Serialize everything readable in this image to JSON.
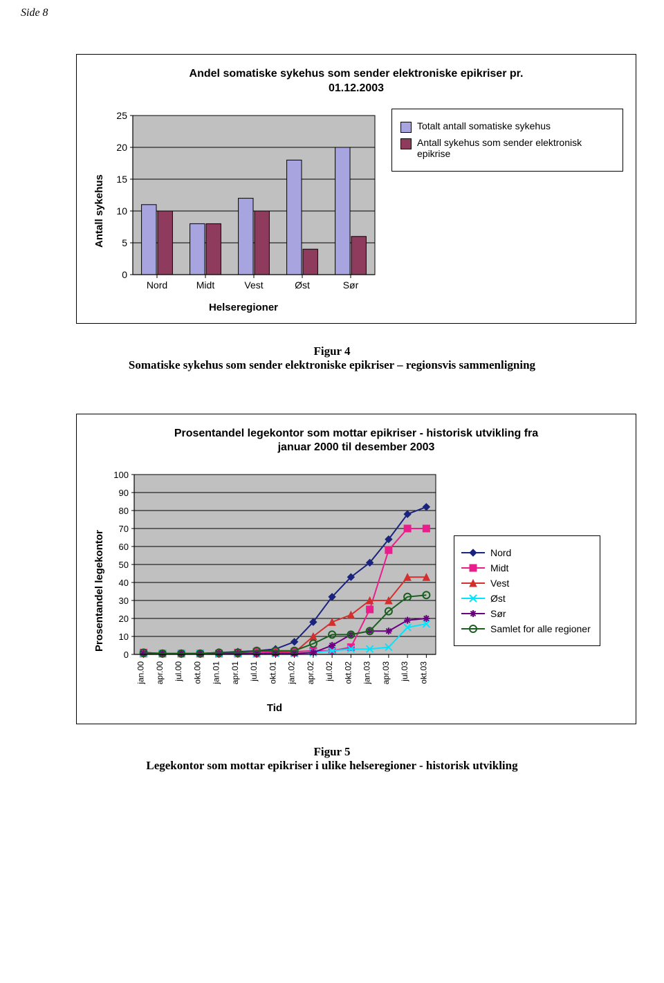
{
  "page_label": "Side 8",
  "bar_chart": {
    "title_line1": "Andel somatiske sykehus som sender elektroniske epikriser pr.",
    "title_line2": "01.12.2003",
    "y_axis_title": "Antall sykehus",
    "x_axis_title": "Helseregioner",
    "categories": [
      "Nord",
      "Midt",
      "Vest",
      "Øst",
      "Sør"
    ],
    "series": [
      {
        "name": "Totalt antall somatiske sykehus",
        "color": "#a7a4e0",
        "values": [
          11,
          8,
          12,
          18,
          20
        ]
      },
      {
        "name": "Antall sykehus som sender elektronisk epikrise",
        "color": "#8e3b5e",
        "values": [
          10,
          8,
          10,
          4,
          6
        ]
      }
    ],
    "y_min": 0,
    "y_max": 25,
    "y_step": 5,
    "plot_bg": "#c0c0c0",
    "grid_color": "#000000",
    "tick_fontsize": 14
  },
  "figure4": {
    "id": "Figur 4",
    "desc": "Somatiske sykehus som sender elektroniske epikriser – regionsvis sammenligning"
  },
  "line_chart": {
    "title_line1": "Prosentandel legekontor som mottar epikriser - historisk utvikling fra",
    "title_line2": "januar 2000 til desember 2003",
    "y_axis_title": "Prosentandel legekontor",
    "x_axis_title": "Tid",
    "x_labels": [
      "jan.00",
      "apr.00",
      "jul.00",
      "okt.00",
      "jan.01",
      "apr.01",
      "jul.01",
      "okt.01",
      "jan.02",
      "apr.02",
      "jul.02",
      "okt.02",
      "jan.03",
      "apr.03",
      "jul.03",
      "okt.03"
    ],
    "y_min": 0,
    "y_max": 100,
    "y_step": 10,
    "plot_bg": "#c0c0c0",
    "grid_color": "#000000",
    "series": [
      {
        "name": "Nord",
        "color": "#1a237e",
        "marker": "diamond",
        "values": [
          1,
          0.5,
          0.5,
          0.5,
          1,
          1.5,
          2,
          3,
          7,
          18,
          32,
          43,
          51,
          64,
          78,
          82
        ]
      },
      {
        "name": "Midt",
        "color": "#e91e8c",
        "marker": "square",
        "values": [
          1,
          0.5,
          0.5,
          0.5,
          0.5,
          1,
          1.5,
          1.5,
          1.5,
          2,
          2,
          4,
          25,
          58,
          70,
          70
        ]
      },
      {
        "name": "Vest",
        "color": "#d32f2f",
        "marker": "triangle",
        "values": [
          0.5,
          0.5,
          0.5,
          0.5,
          0.5,
          0.5,
          0.5,
          1,
          1,
          10,
          18,
          22,
          30,
          30,
          43,
          43
        ]
      },
      {
        "name": "Øst",
        "color": "#00e5ff",
        "marker": "x",
        "values": [
          0.5,
          0.5,
          0.5,
          0.5,
          0.5,
          0.5,
          0.5,
          0.5,
          0.5,
          1,
          2,
          3,
          3,
          4,
          15,
          17
        ]
      },
      {
        "name": "Sør",
        "color": "#6a0080",
        "marker": "star",
        "values": [
          0.5,
          0.5,
          0.5,
          0.5,
          0.5,
          0.5,
          0.5,
          0.5,
          0.5,
          1,
          5,
          11,
          13,
          13,
          19,
          20
        ]
      },
      {
        "name": "Samlet for alle regioner",
        "color": "#1b5e20",
        "marker": "circle",
        "values": [
          1,
          0.5,
          0.5,
          0.5,
          1,
          1,
          2,
          2,
          2,
          6,
          11,
          11,
          13,
          24,
          32,
          33
        ]
      }
    ]
  },
  "figure5": {
    "id": "Figur 5",
    "desc": "Legekontor som mottar epikriser i ulike helseregioner - historisk utvikling"
  }
}
